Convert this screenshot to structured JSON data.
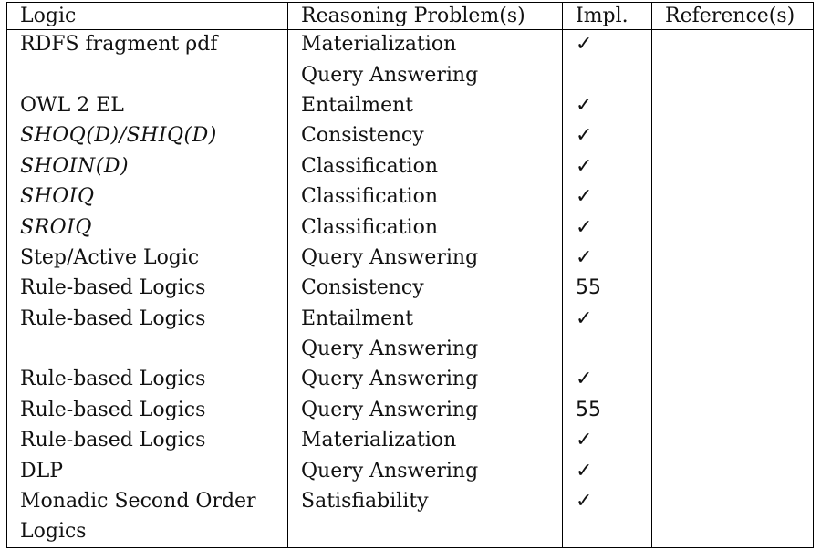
{
  "table": {
    "headers": [
      "Logic",
      "Reasoning Problem(s)",
      "Impl.",
      "Reference(s)"
    ],
    "rows": [
      {
        "logic": "RDFS fragment ρdf",
        "problem": "Materialization",
        "impl": "✓",
        "reference": ""
      },
      {
        "logic": "",
        "problem": "Query Answering",
        "impl": "",
        "reference": ""
      },
      {
        "logic": "OWL 2 EL",
        "problem": "Entailment",
        "impl": "✓",
        "reference": ""
      },
      {
        "logic": "SHOQ(D)/SHIQ(D)",
        "problem": "Consistency",
        "impl": "✓",
        "reference": ""
      },
      {
        "logic": "SHOIN(D)",
        "problem": "Classification",
        "impl": "✓",
        "reference": ""
      },
      {
        "logic": "SHOIQ",
        "problem": "Classification",
        "impl": "✓",
        "reference": ""
      },
      {
        "logic": "SROIQ",
        "problem": "Classification",
        "impl": "✓",
        "reference": ""
      },
      {
        "logic": "Step/Active Logic",
        "problem": "Query Answering",
        "impl": "✓",
        "reference": ""
      },
      {
        "logic": "Rule-based Logics",
        "problem": "Consistency",
        "impl": "55",
        "reference": ""
      },
      {
        "logic": "Rule-based Logics",
        "problem": "Entailment",
        "impl": "✓",
        "reference": ""
      },
      {
        "logic": "",
        "problem": "Query Answering",
        "impl": "",
        "reference": ""
      },
      {
        "logic": "Rule-based Logics",
        "problem": "Query Answering",
        "impl": "✓",
        "reference": ""
      },
      {
        "logic": "Rule-based Logics",
        "problem": "Query Answering",
        "impl": "55",
        "reference": ""
      },
      {
        "logic": "Rule-based Logics",
        "problem": "Materialization",
        "impl": "✓",
        "reference": ""
      },
      {
        "logic": "DLP",
        "problem": "Query Answering",
        "impl": "✓",
        "reference": ""
      },
      {
        "logic": "Monadic Second Order",
        "problem": "Satisfiability",
        "impl": "✓",
        "reference": ""
      },
      {
        "logic": "Logics",
        "problem": "",
        "impl": "",
        "reference": ""
      }
    ]
  }
}
